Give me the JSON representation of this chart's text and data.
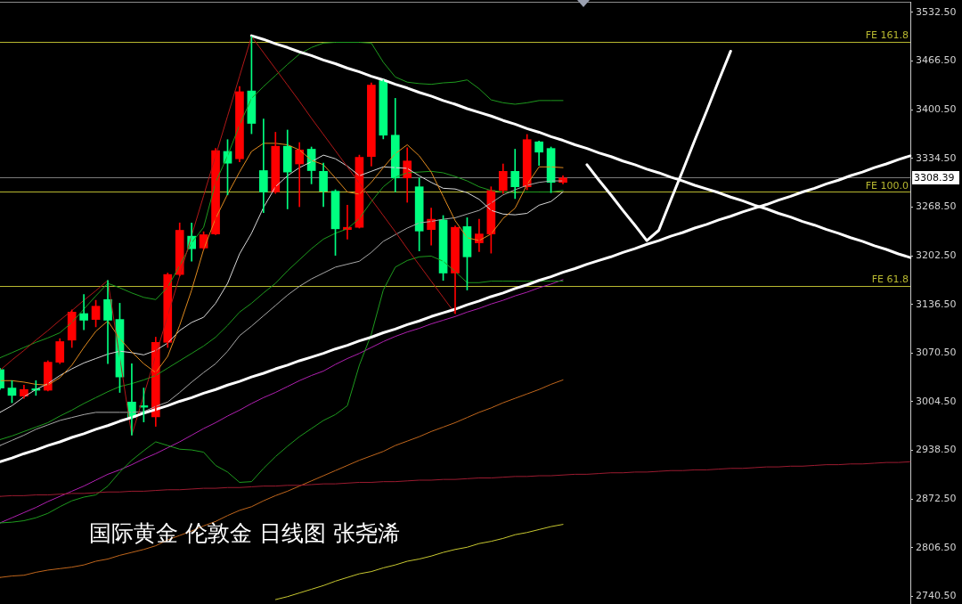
{
  "chart_data": {
    "type": "candlestick",
    "annotations": [
      "国际黄金 伦敦金 日线图 张尧浠"
    ],
    "categories": [
      null,
      null,
      null,
      null,
      null,
      null,
      null,
      null,
      null,
      null,
      null,
      null,
      null,
      null,
      null,
      null,
      null,
      null,
      null,
      null,
      null,
      null,
      null,
      null,
      null,
      null,
      null,
      null,
      null,
      null,
      null,
      null,
      null,
      null,
      null,
      null,
      null,
      null,
      null,
      null,
      null,
      null,
      null,
      null,
      null,
      null,
      null,
      null,
      null,
      null,
      null,
      null,
      null,
      null,
      null,
      null,
      null,
      null,
      null,
      null,
      null,
      null,
      null,
      null,
      null,
      null,
      null,
      null,
      null,
      null,
      null,
      null,
      null,
      null,
      null,
      null,
      null
    ],
    "ohlc": [
      [
        3048,
        3050,
        3021,
        3023
      ],
      [
        3023,
        3033,
        3003,
        3013
      ],
      [
        3012,
        3027,
        3009,
        3021
      ],
      [
        3022,
        3033,
        3013,
        3020
      ],
      [
        3020,
        3060,
        3019,
        3058
      ],
      [
        3058,
        3090,
        3056,
        3086
      ],
      [
        3088,
        3129,
        3078,
        3126
      ],
      [
        3124,
        3150,
        3102,
        3115
      ],
      [
        3116,
        3142,
        3106,
        3134
      ],
      [
        3143,
        3169,
        3056,
        3115
      ],
      [
        3116,
        3138,
        3017,
        3038
      ],
      [
        3004,
        3056,
        2959,
        2983
      ],
      [
        2999,
        3023,
        2977,
        2997
      ],
      [
        2984,
        3092,
        2971,
        3085
      ],
      [
        3085,
        3179,
        3078,
        3177
      ],
      [
        3177,
        3247,
        3175,
        3237
      ],
      [
        3229,
        3247,
        3195,
        3212
      ],
      [
        3213,
        3235,
        3211,
        3231
      ],
      [
        3232,
        3348,
        3231,
        3345
      ],
      [
        3344,
        3360,
        3285,
        3328
      ],
      [
        3334,
        3432,
        3330,
        3425
      ],
      [
        3426,
        3500,
        3368,
        3382
      ],
      [
        3318,
        3388,
        3261,
        3289
      ],
      [
        3289,
        3370,
        3287,
        3351
      ],
      [
        3351,
        3373,
        3266,
        3316
      ],
      [
        3327,
        3356,
        3269,
        3346
      ],
      [
        3347,
        3350,
        3300,
        3318
      ],
      [
        3317,
        3328,
        3269,
        3290
      ],
      [
        3290,
        3292,
        3203,
        3239
      ],
      [
        3238,
        3271,
        3225,
        3241
      ],
      [
        3241,
        3339,
        3240,
        3336
      ],
      [
        3337,
        3437,
        3324,
        3434
      ],
      [
        3440,
        3441,
        3361,
        3366
      ],
      [
        3366,
        3416,
        3289,
        3308
      ],
      [
        3308,
        3349,
        3275,
        3331
      ],
      [
        3296,
        3308,
        3209,
        3236
      ],
      [
        3238,
        3267,
        3217,
        3252
      ],
      [
        3251,
        3257,
        3169,
        3179
      ],
      [
        3179,
        3243,
        3124,
        3241
      ],
      [
        3242,
        3254,
        3156,
        3201
      ],
      [
        3220,
        3252,
        3208,
        3232
      ],
      [
        3232,
        3296,
        3206,
        3291
      ],
      [
        3291,
        3327,
        3287,
        3317
      ],
      [
        3317,
        3347,
        3280,
        3296
      ],
      [
        3296,
        3367,
        3292,
        3360
      ],
      [
        3357,
        3358,
        3325,
        3343
      ],
      [
        3348,
        3350,
        3288,
        3302
      ],
      [
        3302,
        3311,
        3300,
        3308
      ],
      null,
      null,
      null,
      null,
      null,
      null,
      null,
      null,
      null,
      null,
      null,
      null,
      null,
      null,
      null,
      null,
      null,
      null,
      null,
      null,
      null,
      null,
      null,
      null,
      null,
      null,
      null,
      null,
      null
    ],
    "colors": [
      "#00ff80",
      "#00ff80",
      "#ff0000",
      "#00ff80",
      "#ff0000",
      "#ff0000",
      "#ff0000",
      "#00ff80",
      "#ff0000",
      "#00ff80",
      "#00ff80",
      "#00ff80",
      "#00ff80",
      "#ff0000",
      "#ff0000",
      "#ff0000",
      "#00ff80",
      "#ff0000",
      "#ff0000",
      "#00ff80",
      "#ff0000",
      "#00ff80",
      "#00ff80",
      "#ff0000",
      "#00ff80",
      "#ff0000",
      "#00ff80",
      "#00ff80",
      "#00ff80",
      "#ff0000",
      "#ff0000",
      "#ff0000",
      "#00ff80",
      "#00ff80",
      "#ff0000",
      "#00ff80",
      "#ff0000",
      "#00ff80",
      "#ff0000",
      "#00ff80",
      "#ff0000",
      "#ff0000",
      "#ff0000",
      "#00ff80",
      "#ff0000",
      "#00ff80",
      "#00ff80",
      "#ff0000",
      null,
      null,
      null,
      null,
      null,
      null,
      null,
      null,
      null,
      null,
      null,
      null,
      null,
      null,
      null,
      null,
      null,
      null,
      null,
      null,
      null,
      null,
      null,
      null,
      null,
      null,
      null,
      null,
      null
    ],
    "series": [
      {
        "type": "line",
        "color": "#ffffff",
        "values": [
          2923,
          2928,
          2934,
          2939,
          2945,
          2950,
          2956,
          2961,
          2967,
          2972,
          2978,
          2983,
          2989,
          2994,
          2999,
          3005,
          3010,
          3016,
          3021,
          3027,
          3032,
          3038,
          3043,
          3049,
          3054,
          3060,
          3065,
          3070,
          3076,
          3081,
          3087,
          3092,
          3098,
          3103,
          3109,
          3114,
          3120,
          3125,
          3130,
          3136,
          3141,
          3147,
          3152,
          3158,
          3163,
          3169,
          3174,
          3180,
          3185,
          3191,
          3196,
          3201,
          3207,
          3212,
          3218,
          3223,
          3229,
          3234,
          3240,
          3245,
          3251,
          3256,
          3262,
          3267,
          3272,
          3278,
          3283,
          3289,
          3294,
          3300,
          3305,
          3311,
          3316,
          3322,
          3327,
          3333,
          3338
        ]
      },
      {
        "type": "line",
        "color": "#ffffff",
        "values": [
          null,
          null,
          null,
          null,
          null,
          null,
          null,
          null,
          null,
          null,
          null,
          null,
          null,
          null,
          null,
          null,
          null,
          null,
          null,
          null,
          null,
          3501,
          3496,
          3490,
          3485,
          3479,
          3474,
          3468,
          3463,
          3457,
          3452,
          3446,
          3441,
          3435,
          3430,
          3424,
          3419,
          3413,
          3408,
          3402,
          3397,
          3392,
          3386,
          3381,
          3375,
          3370,
          3364,
          3359,
          3353,
          3348,
          3342,
          3337,
          3331,
          3326,
          3320,
          3315,
          3309,
          3304,
          3298,
          3293,
          3288,
          3282,
          3277,
          3271,
          3266,
          3260,
          3255,
          3249,
          3244,
          3238,
          3233,
          3227,
          3222,
          3216,
          3211,
          3205,
          3200
        ]
      },
      {
        "type": "line",
        "color": "#ffffff",
        "values": [
          null,
          null,
          null,
          null,
          null,
          null,
          null,
          null,
          null,
          null,
          null,
          null,
          null,
          null,
          null,
          null,
          null,
          null,
          null,
          null,
          null,
          null,
          null,
          null,
          null,
          null,
          null,
          null,
          null,
          null,
          null,
          null,
          null,
          null,
          null,
          null,
          null,
          null,
          null,
          null,
          null,
          null,
          null,
          null,
          null,
          null,
          null,
          null,
          null,
          3326,
          3305,
          3285,
          3264,
          3244,
          3223,
          3237,
          3278,
          3318,
          3359,
          3399,
          3440,
          3480,
          null,
          null,
          null,
          null,
          null,
          null,
          null,
          null,
          null,
          null,
          null,
          null,
          null,
          null,
          null
        ]
      },
      {
        "type": "line",
        "color": "#9b1b30",
        "values": [
          2876,
          2877,
          2877,
          2878,
          2878,
          2879,
          2880,
          2880,
          2881,
          2882,
          2882,
          2883,
          2883,
          2884,
          2885,
          2885,
          2886,
          2887,
          2887,
          2888,
          2888,
          2889,
          2890,
          2890,
          2891,
          2891,
          2892,
          2893,
          2893,
          2894,
          2895,
          2895,
          2896,
          2896,
          2897,
          2898,
          2898,
          2899,
          2899,
          2900,
          2901,
          2901,
          2902,
          2903,
          2903,
          2904,
          2904,
          2905,
          2906,
          2906,
          2907,
          2908,
          2908,
          2909,
          2909,
          2910,
          2911,
          2911,
          2912,
          2912,
          2913,
          2914,
          2914,
          2915,
          2916,
          2916,
          2917,
          2917,
          2918,
          2919,
          2919,
          2920,
          2920,
          2921,
          2922,
          2922,
          2923
        ]
      },
      {
        "type": "line",
        "color": "#b01818",
        "values": [
          3047,
          3061,
          3074,
          3088,
          3101,
          3115,
          3128,
          3142,
          3155,
          3169,
          null,
          2959,
          null,
          3067,
          3121,
          3175,
          3230,
          3284,
          3338,
          3392,
          3446,
          3500,
          3478,
          3456,
          3434,
          3412,
          3389,
          3367,
          3345,
          3323,
          3301,
          3279,
          3257,
          3235,
          3212,
          3190,
          3168,
          3146,
          3124,
          null,
          null,
          null,
          null,
          null,
          null,
          null,
          null,
          null,
          null,
          null,
          null,
          null,
          null,
          null,
          null,
          null,
          null,
          null,
          null,
          null,
          null,
          null,
          null,
          null,
          null,
          null,
          null,
          null,
          null,
          null,
          null,
          null,
          null,
          null,
          null,
          null,
          null
        ]
      },
      {
        "type": "line",
        "color": "#e08a1e",
        "values": [
          3033,
          3033,
          3031,
          3028,
          3027,
          3037,
          3054,
          3078,
          3100,
          3114,
          3090,
          3072,
          3056,
          3044,
          3066,
          3108,
          3156,
          3211,
          3253,
          3286,
          3316,
          3344,
          3355,
          3355,
          3353,
          3346,
          3332,
          3326,
          3308,
          3289,
          3286,
          3302,
          3322,
          3341,
          3353,
          3338,
          3316,
          3283,
          3250,
          3227,
          3223,
          3232,
          3253,
          3267,
          3299,
          3323,
          3323,
          3322,
          null,
          null,
          null,
          null,
          null,
          null,
          null,
          null,
          null,
          null,
          null,
          null,
          null,
          null,
          null,
          null,
          null,
          null,
          null,
          null,
          null,
          null,
          null,
          null,
          null,
          null,
          null,
          null,
          null
        ]
      },
      {
        "type": "line",
        "color": "#d8d8d8",
        "values": [
          2990,
          2999,
          3011,
          3021,
          3029,
          3040,
          3049,
          3057,
          3063,
          3069,
          3073,
          3071,
          3068,
          3074,
          3084,
          3101,
          3112,
          3119,
          3138,
          3165,
          3205,
          3233,
          3268,
          3296,
          3311,
          3322,
          3330,
          3339,
          3334,
          3324,
          3311,
          3317,
          3323,
          3322,
          3321,
          3311,
          3302,
          3294,
          3293,
          3288,
          3279,
          3264,
          3259,
          3258,
          3260,
          3271,
          3276,
          3289,
          null,
          null,
          null,
          null,
          null,
          null,
          null,
          null,
          null,
          null,
          null,
          null,
          null,
          null,
          null,
          null,
          null,
          null,
          null,
          null,
          null,
          null,
          null,
          null,
          null,
          null,
          null,
          null,
          null
        ]
      },
      {
        "type": "line",
        "color": "#a8a8a8",
        "values": [
          2945,
          2952,
          2959,
          2967,
          2973,
          2979,
          2983,
          2987,
          2990,
          2990,
          2990,
          2990,
          2991,
          2998,
          3004,
          3017,
          3031,
          3044,
          3056,
          3073,
          3094,
          3107,
          3121,
          3135,
          3149,
          3161,
          3171,
          3179,
          3187,
          3191,
          3195,
          3207,
          3222,
          3231,
          3240,
          3247,
          3249,
          3252,
          3254,
          3259,
          3264,
          3274,
          3285,
          3292,
          3298,
          3302,
          3304,
          3304,
          null,
          null,
          null,
          null,
          null,
          null,
          null,
          null,
          null,
          null,
          null,
          null,
          null,
          null,
          null,
          null,
          null,
          null,
          null,
          null,
          null,
          null,
          null,
          null,
          null,
          null,
          null,
          null,
          null
        ]
      },
      {
        "type": "line",
        "color": "#1e9a1e",
        "values": [
          3064,
          3071,
          3078,
          3085,
          3091,
          3098,
          3112,
          3130,
          3148,
          3165,
          3159,
          3152,
          3146,
          3143,
          3160,
          3189,
          3220,
          3241,
          3302,
          3338,
          3380,
          3416,
          3432,
          3447,
          3462,
          3476,
          3485,
          3491,
          3492,
          3492,
          3492,
          3491,
          3465,
          3445,
          3438,
          3436,
          3435,
          3437,
          3438,
          3441,
          3429,
          3414,
          3410,
          3408,
          3410,
          3413,
          3413,
          3413,
          null,
          null,
          null,
          null,
          null,
          null,
          null,
          null,
          null,
          null,
          null,
          null,
          null,
          null,
          null,
          null,
          null,
          null,
          null,
          null,
          null,
          null,
          null,
          null,
          null,
          null,
          null,
          null,
          null
        ]
      },
      {
        "type": "line",
        "color": "#1e9a1e",
        "values": [
          2953,
          2958,
          2964,
          2970,
          2976,
          2985,
          2993,
          3002,
          3010,
          3018,
          3025,
          3029,
          3034,
          3040,
          3050,
          3060,
          3070,
          3080,
          3092,
          3108,
          3126,
          3138,
          3152,
          3165,
          3182,
          3197,
          3212,
          3225,
          3233,
          3239,
          3253,
          3276,
          3296,
          3309,
          3315,
          3316,
          3317,
          3315,
          3310,
          3304,
          3296,
          3291,
          3289,
          3288,
          3289,
          3289,
          3289,
          3291,
          null,
          null,
          null,
          null,
          null,
          null,
          null,
          null,
          null,
          null,
          null,
          null,
          null,
          null,
          null,
          null,
          null,
          null,
          null,
          null,
          null,
          null,
          null,
          null,
          null,
          null,
          null,
          null,
          null
        ]
      },
      {
        "type": "line",
        "color": "#1e9a1e",
        "values": [
          2840,
          2841,
          2843,
          2847,
          2853,
          2862,
          2870,
          2875,
          2878,
          2890,
          2909,
          2925,
          2938,
          2950,
          2945,
          2940,
          2939,
          2936,
          2918,
          2909,
          2895,
          2896,
          2914,
          2930,
          2944,
          2957,
          2968,
          2979,
          2987,
          2999,
          3054,
          3096,
          3156,
          3187,
          3196,
          3201,
          3202,
          3195,
          3181,
          3166,
          3166,
          3168,
          3168,
          3168,
          3168,
          3168,
          3168,
          3168,
          null,
          null,
          null,
          null,
          null,
          null,
          null,
          null,
          null,
          null,
          null,
          null,
          null,
          null,
          null,
          null,
          null,
          null,
          null,
          null,
          null,
          null,
          null,
          null,
          null,
          null,
          null,
          null,
          null
        ]
      },
      {
        "type": "line",
        "color": "#b020b0",
        "values": [
          2840,
          2847,
          2854,
          2861,
          2869,
          2876,
          2883,
          2890,
          2898,
          2906,
          2912,
          2919,
          2927,
          2934,
          2942,
          2950,
          2959,
          2968,
          2976,
          2985,
          2993,
          3002,
          3010,
          3017,
          3025,
          3033,
          3040,
          3046,
          3055,
          3063,
          3070,
          3078,
          3086,
          3093,
          3099,
          3104,
          3110,
          3115,
          3120,
          3126,
          3131,
          3137,
          3142,
          3148,
          3153,
          3159,
          3164,
          3170,
          null,
          null,
          null,
          null,
          null,
          null,
          null,
          null,
          null,
          null,
          null,
          null,
          null,
          null,
          null,
          null,
          null,
          null,
          null,
          null,
          null,
          null,
          null,
          null,
          null,
          null,
          null,
          null,
          null
        ]
      },
      {
        "type": "line",
        "color": "#c0661c",
        "values": [
          2766,
          2768,
          2769,
          2773,
          2776,
          2778,
          2780,
          2783,
          2788,
          2791,
          2796,
          2800,
          2804,
          2809,
          2817,
          2823,
          2829,
          2836,
          2842,
          2850,
          2857,
          2862,
          2870,
          2877,
          2883,
          2890,
          2897,
          2904,
          2911,
          2918,
          2925,
          2931,
          2937,
          2945,
          2951,
          2957,
          2964,
          2970,
          2976,
          2983,
          2990,
          2996,
          3003,
          3009,
          3015,
          3021,
          3028,
          3034,
          null,
          null,
          null,
          null,
          null,
          null,
          null,
          null,
          null,
          null,
          null,
          null,
          null,
          null,
          null,
          null,
          null,
          null,
          null,
          null,
          null,
          null,
          null,
          null,
          null,
          null,
          null,
          null,
          null
        ]
      },
      {
        "type": "line",
        "color": "#c8c830",
        "values": [
          null,
          null,
          null,
          null,
          null,
          null,
          null,
          null,
          null,
          null,
          null,
          null,
          null,
          null,
          null,
          null,
          null,
          null,
          null,
          null,
          null,
          null,
          null,
          2736,
          2740,
          2745,
          2750,
          2755,
          2761,
          2766,
          2771,
          2774,
          2779,
          2783,
          2788,
          2791,
          2795,
          2800,
          2804,
          2807,
          2812,
          2815,
          2819,
          2824,
          2827,
          2831,
          2835,
          2838,
          null,
          null,
          null,
          null,
          null,
          null,
          null,
          null,
          null,
          null,
          null,
          null,
          null,
          null,
          null,
          null,
          null,
          null,
          null,
          null,
          null,
          null,
          null,
          null,
          null,
          null,
          null,
          null,
          null
        ]
      }
    ],
    "ylim": [
      2730,
      3547
    ],
    "yticks": [
      {
        "value": 3532.5,
        "label": "3532.50"
      },
      {
        "value": 3466.5,
        "label": "3466.50"
      },
      {
        "value": 3400.5,
        "label": "3400.50"
      },
      {
        "value": 3334.5,
        "label": "3334.50"
      },
      {
        "value": 3268.5,
        "label": "3268.50"
      },
      {
        "value": 3202.5,
        "label": "3202.50"
      },
      {
        "value": 3136.5,
        "label": "3136.50"
      },
      {
        "value": 3070.5,
        "label": "3070.50"
      },
      {
        "value": 3004.5,
        "label": "3004.50"
      },
      {
        "value": 2938.5,
        "label": "2938.50"
      },
      {
        "value": 2872.5,
        "label": "2872.50"
      },
      {
        "value": 2806.5,
        "label": "2806.50"
      },
      {
        "value": 2740.5,
        "label": "2740.50"
      }
    ],
    "ref_lines": [
      {
        "axis": "y",
        "value": 3308.39,
        "label": "3308.39",
        "color": "#7a7a7a"
      },
      {
        "axis": "y",
        "value": 3493,
        "label": "FE 161.8",
        "color": "#b8b830"
      },
      {
        "axis": "y",
        "value": 3289,
        "label": "FE 100.0",
        "color": "#b8b830"
      },
      {
        "axis": "y",
        "value": 3162,
        "label": "FE 61.8",
        "color": "#b8b830"
      }
    ],
    "tick_labels": "y",
    "grid": false,
    "legend": false,
    "marker": "none"
  }
}
